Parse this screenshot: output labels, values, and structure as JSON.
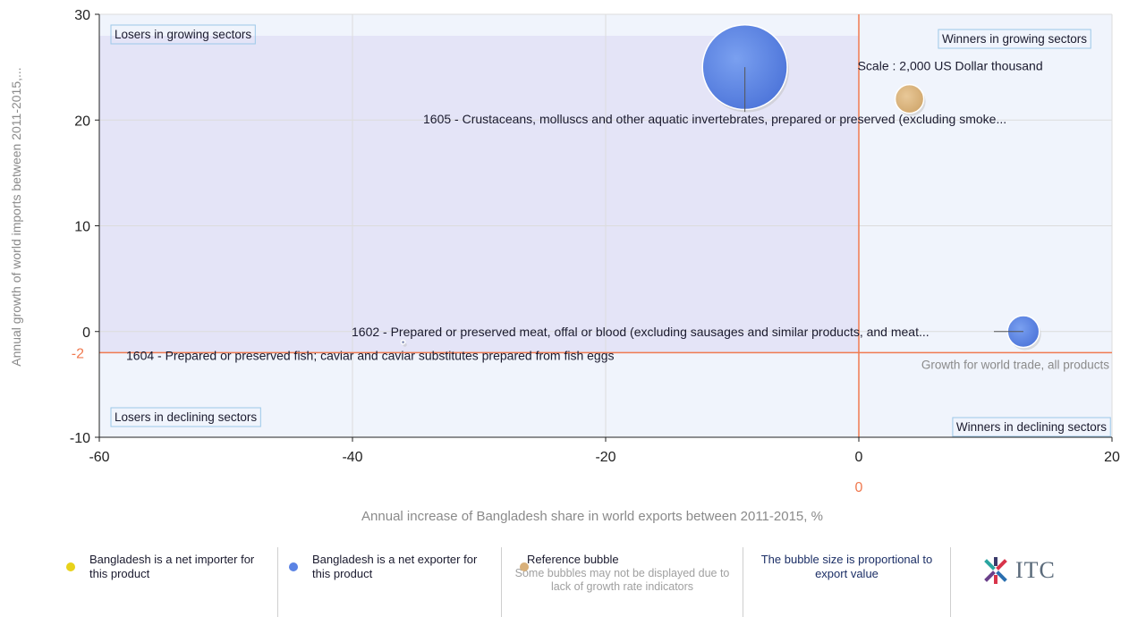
{
  "chart_data": {
    "type": "scatter",
    "subtype": "bubble",
    "xlabel": "Annual increase of Bangladesh share in world exports between 2011-2015, %",
    "ylabel": "Annual growth of world imports between 2011-2015,...",
    "xlim": [
      -60,
      20
    ],
    "ylim": [
      -10,
      30
    ],
    "x_ticks": [
      -60,
      -40,
      -20,
      0,
      20
    ],
    "y_ticks": [
      -10,
      0,
      10,
      20,
      30
    ],
    "grid": true,
    "reference_lines": {
      "x": 0,
      "x_label": "0",
      "y": -2,
      "y_label": "-2",
      "y_line_caption": "Growth for world trade, all products"
    },
    "quadrant_labels": {
      "top_left": "Losers in growing sectors",
      "top_right": "Winners in growing sectors",
      "bottom_left": "Losers in declining sectors",
      "bottom_right": "Winners in declining sectors"
    },
    "bubbles": [
      {
        "label": "1605 - Crustaceans, molluscs and other aquatic invertebrates, prepared or preserved (excluding smoke...",
        "x": -9,
        "y": 25,
        "size": 10,
        "category": "net_exporter"
      },
      {
        "label": "1602 - Prepared or preserved meat, offal or blood (excluding sausages and similar products, and meat...",
        "x": 13,
        "y": 0,
        "size": 1.4,
        "category": "net_exporter"
      },
      {
        "label": "1604 - Prepared or preserved fish; caviar and caviar substitutes prepared from fish eggs",
        "x": -36,
        "y": -1,
        "size": 0.02,
        "category": "net_exporter"
      }
    ],
    "reference_bubble": {
      "x": 4,
      "y": 22,
      "label": "Scale : 2,000 US Dollar thousand"
    },
    "colors": {
      "net_importer": "#e8d21a",
      "net_exporter": "#5b83e4",
      "reference": "#d8b07a",
      "top_left_shade": "#e4e4f7",
      "other_shade": "#f0f4fc",
      "ref_line": "#f07a50",
      "axis_label": "#8a8a8a",
      "quadrant_label_border": "#9cc8e8"
    }
  },
  "legend": {
    "net_importer": "Bangladesh is a net importer for this product",
    "net_exporter": "Bangladesh is a net exporter for this product",
    "reference_title": "Reference bubble",
    "reference_note": "Some bubbles may not be displayed due to lack of growth rate indicators",
    "size_note": "The bubble size is proportional to export value",
    "logo_text": "ITC"
  }
}
